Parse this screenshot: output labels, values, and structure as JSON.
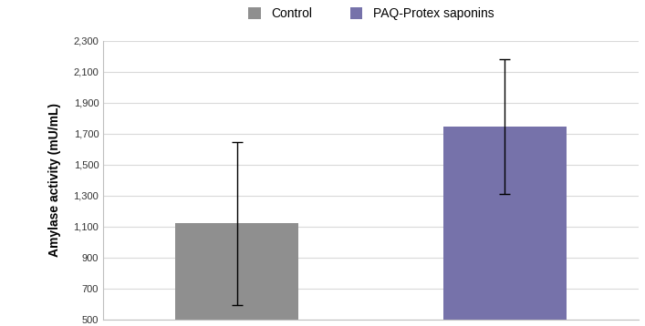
{
  "chart_data": {
    "type": "bar",
    "y_label": "Amylase activity (mU/mL)",
    "series": [
      {
        "name": "Control",
        "color": "#8f8f8f",
        "values": [
          1120
        ],
        "errors": [
          525
        ]
      },
      {
        "name": "PAQ-Protex saponins",
        "color": "#7672aa",
        "values": [
          1745
        ],
        "errors": [
          435
        ]
      }
    ],
    "ylim": [
      500,
      2300
    ],
    "yticks": [
      500,
      700,
      900,
      {
        "value": 1100,
        "label": "1,100"
      },
      {
        "value": 1300,
        "label": "1,300"
      },
      {
        "value": 1500,
        "label": "1,500"
      },
      {
        "value": 1700,
        "label": "1,700"
      },
      {
        "value": 1900,
        "label": "1,900"
      },
      {
        "value": 2100,
        "label": "2,100"
      },
      {
        "value": 2300,
        "label": "2,300"
      }
    ],
    "grid": true,
    "legend": "upper center",
    "tick_labels": "y"
  }
}
